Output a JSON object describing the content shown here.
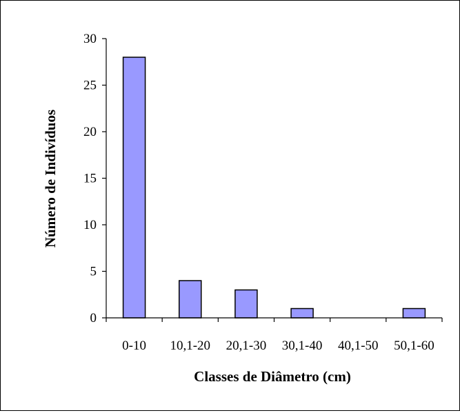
{
  "chart_data": {
    "type": "bar",
    "categories": [
      "0-10",
      "10,1-20",
      "20,1-30",
      "30,1-40",
      "40,1-50",
      "50,1-60"
    ],
    "values": [
      28,
      4,
      3,
      1,
      0,
      1
    ],
    "xlabel": "Classes de Diâmetro (cm)",
    "ylabel": "Número de Indivíduos",
    "ylim": [
      0,
      30
    ],
    "yticks": [
      0,
      5,
      10,
      15,
      20,
      25,
      30
    ],
    "grid": false,
    "legend": "none",
    "bar_color": "#9999FF",
    "bar_edge_color": "#000000"
  }
}
